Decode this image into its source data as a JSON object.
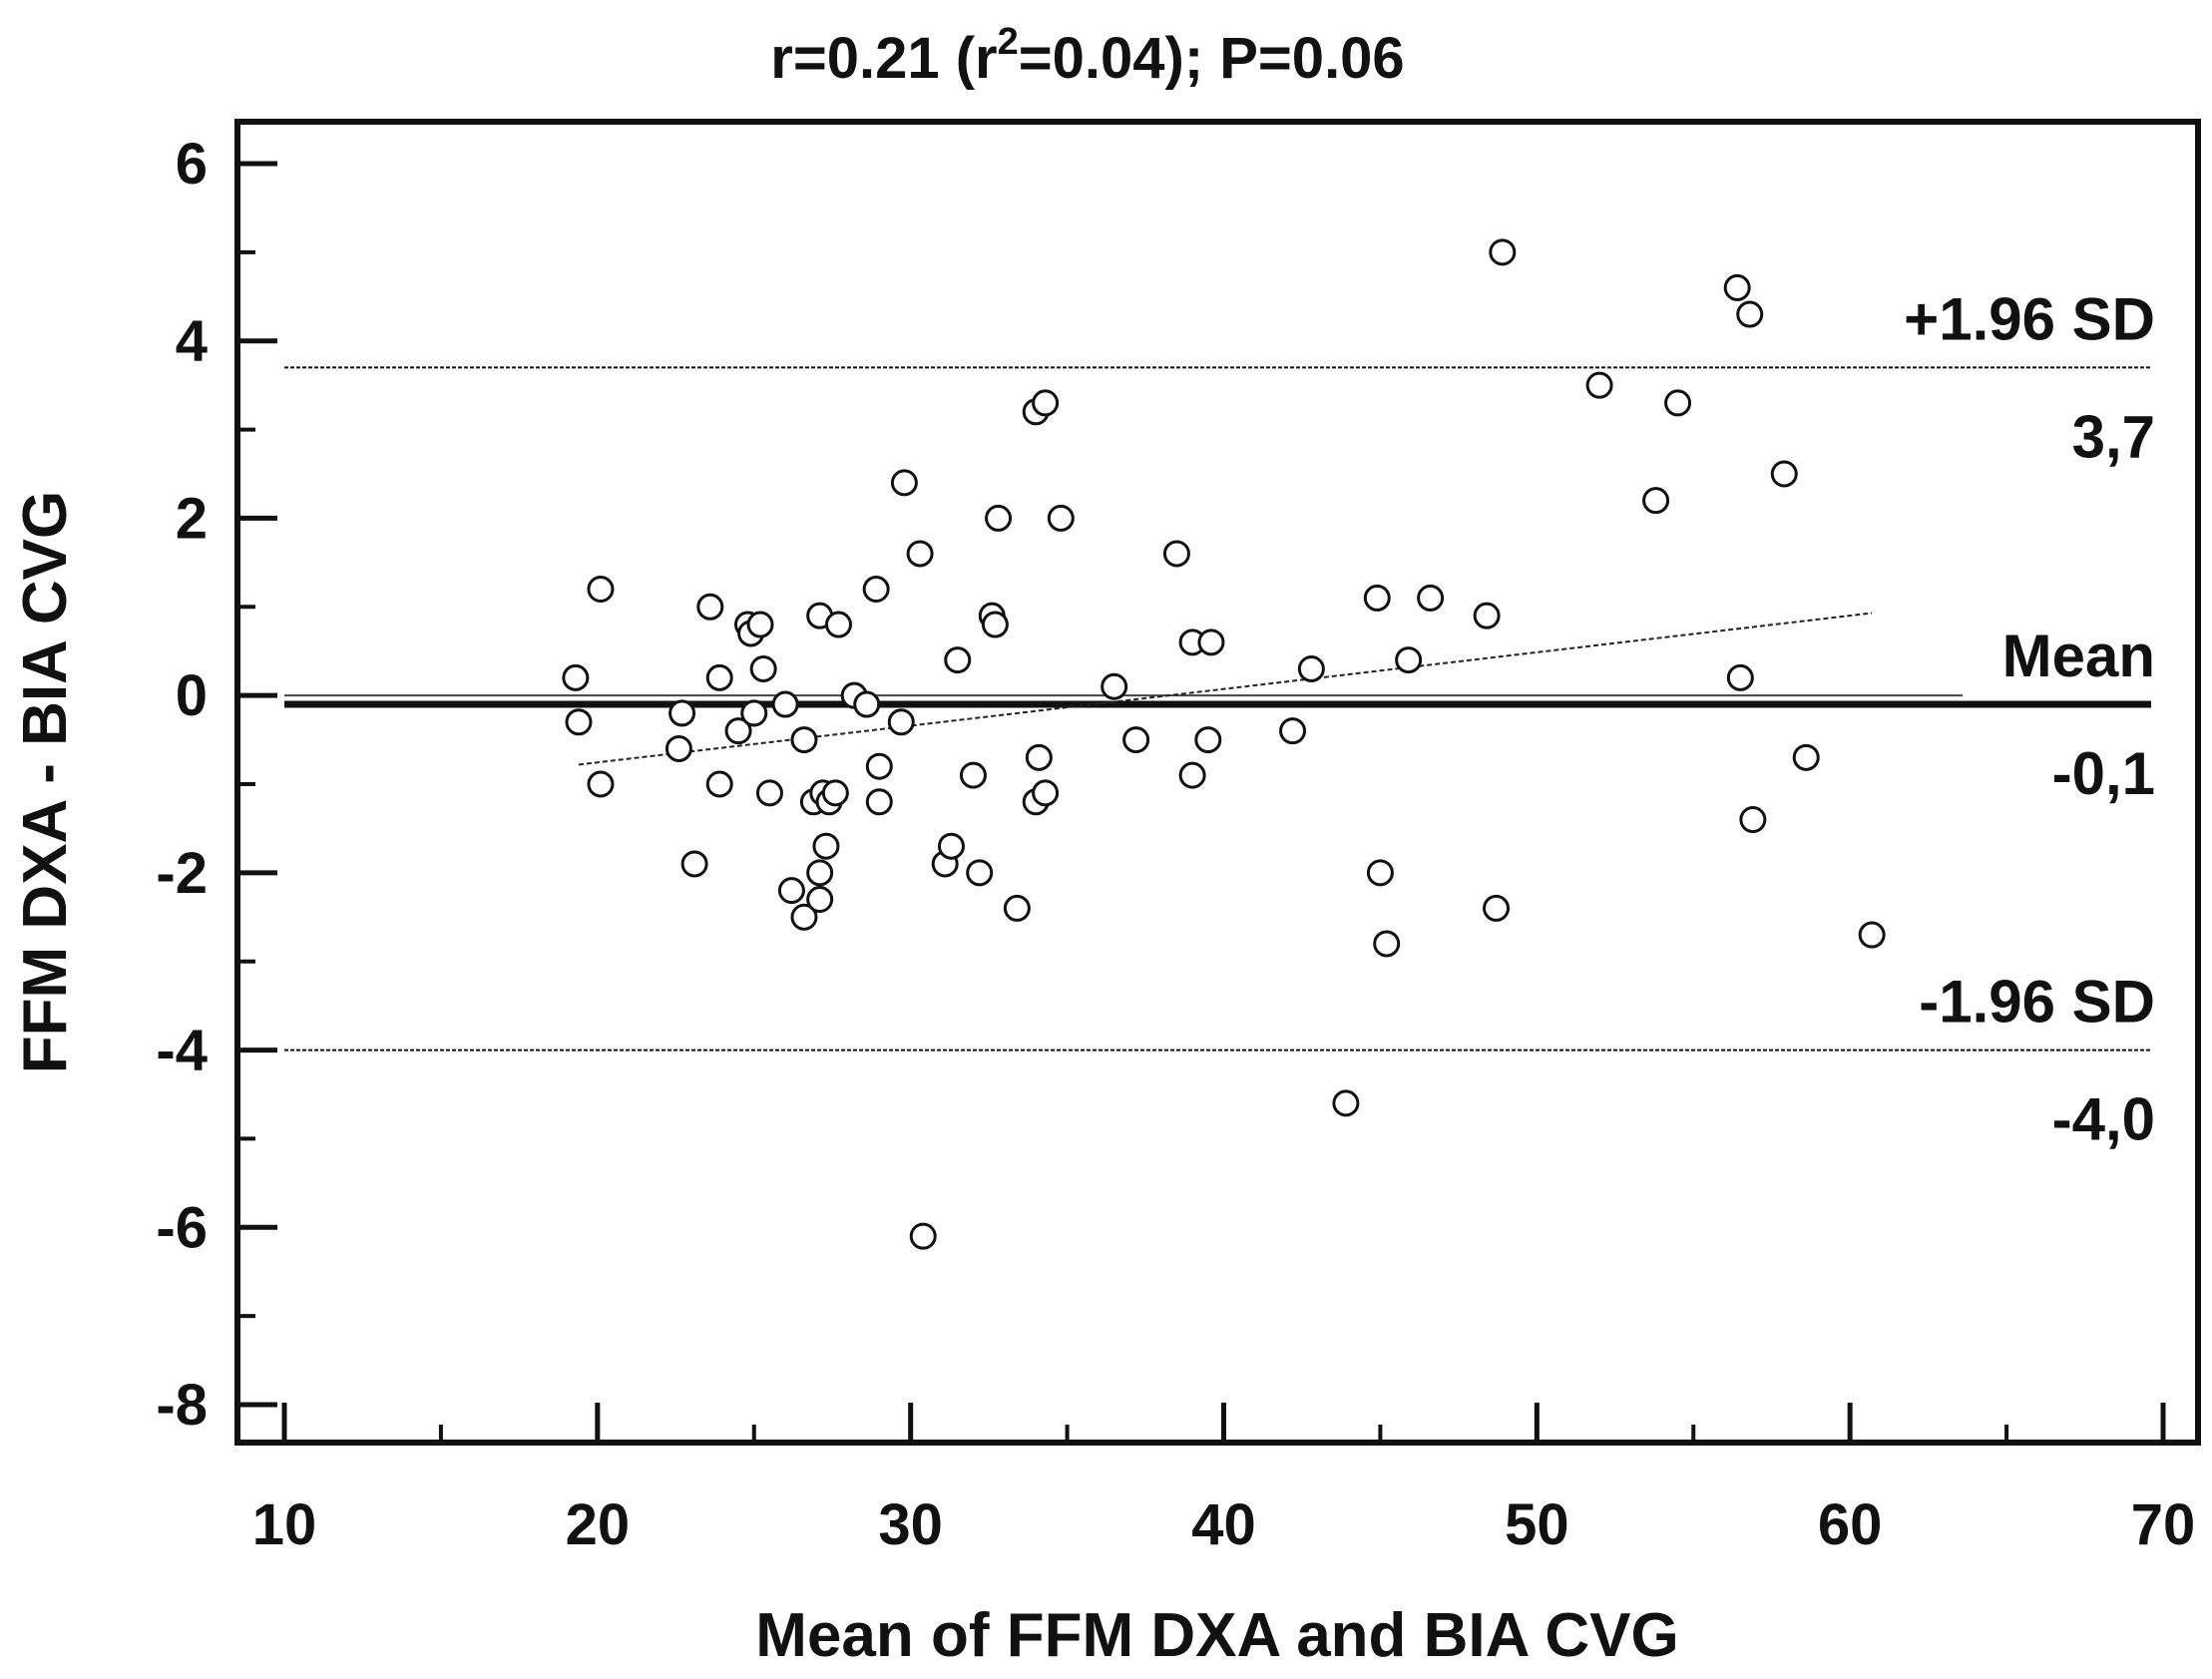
{
  "chart_data": {
    "type": "scatter",
    "title": "r=0.21 (r",
    "title_sup": "2",
    "title_rest": "=0.04); P=0.06",
    "xlabel": "Mean of FFM DXA and BIA CVG",
    "ylabel": "FFM DXA - BIA CVG",
    "xlim": [
      10,
      70
    ],
    "ylim": [
      -8,
      6
    ],
    "x_ticks": [
      "10",
      "20",
      "30",
      "40",
      "50",
      "60",
      "70"
    ],
    "y_ticks": [
      "6",
      "4",
      "2",
      "0",
      "-2",
      "-4",
      "-6",
      "-8"
    ],
    "grid": false,
    "reference_lines": [
      {
        "name": "+1.96 SD",
        "value": 3.7,
        "value_label": "3,7",
        "style": "dotted"
      },
      {
        "name": "Mean",
        "value": -0.1,
        "value_label": "-0,1",
        "style": "solid"
      },
      {
        "name": "-1.96 SD",
        "value": -4.0,
        "value_label": "-4,0",
        "style": "dotted"
      }
    ],
    "zero_line": {
      "value": 0,
      "x_range": [
        10,
        63.6
      ]
    },
    "regression_line": {
      "x": [
        19.4,
        60.7
      ],
      "y": [
        -0.78,
        0.93
      ]
    },
    "points": [
      {
        "x": 19.3,
        "y": 0.2
      },
      {
        "x": 19.4,
        "y": -0.3
      },
      {
        "x": 20.1,
        "y": 1.2
      },
      {
        "x": 20.1,
        "y": -1.0
      },
      {
        "x": 22.6,
        "y": -0.6
      },
      {
        "x": 22.7,
        "y": -0.2
      },
      {
        "x": 23.1,
        "y": -1.9
      },
      {
        "x": 23.6,
        "y": 1.0
      },
      {
        "x": 23.9,
        "y": 0.2
      },
      {
        "x": 23.9,
        "y": -1.0
      },
      {
        "x": 24.5,
        "y": -0.4
      },
      {
        "x": 24.8,
        "y": 0.8
      },
      {
        "x": 24.9,
        "y": 0.7
      },
      {
        "x": 25.0,
        "y": -0.2
      },
      {
        "x": 25.2,
        "y": 0.8
      },
      {
        "x": 25.3,
        "y": 0.3
      },
      {
        "x": 25.5,
        "y": -1.1
      },
      {
        "x": 26.0,
        "y": -0.1
      },
      {
        "x": 26.2,
        "y": -2.2
      },
      {
        "x": 26.6,
        "y": -0.5
      },
      {
        "x": 26.6,
        "y": -2.5
      },
      {
        "x": 26.9,
        "y": -1.2
      },
      {
        "x": 27.1,
        "y": 0.9
      },
      {
        "x": 27.1,
        "y": -2.0
      },
      {
        "x": 27.1,
        "y": -2.3
      },
      {
        "x": 27.2,
        "y": -1.1
      },
      {
        "x": 27.3,
        "y": -1.7
      },
      {
        "x": 27.4,
        "y": -1.2
      },
      {
        "x": 27.6,
        "y": -1.1
      },
      {
        "x": 27.7,
        "y": 0.8
      },
      {
        "x": 28.2,
        "y": 0.0
      },
      {
        "x": 28.6,
        "y": -0.1
      },
      {
        "x": 28.9,
        "y": 1.2
      },
      {
        "x": 29.0,
        "y": -0.8
      },
      {
        "x": 29.0,
        "y": -1.2
      },
      {
        "x": 29.7,
        "y": -0.3
      },
      {
        "x": 29.8,
        "y": 2.4
      },
      {
        "x": 30.3,
        "y": 1.6
      },
      {
        "x": 30.4,
        "y": -6.1
      },
      {
        "x": 31.1,
        "y": -1.9
      },
      {
        "x": 31.3,
        "y": -1.7
      },
      {
        "x": 31.5,
        "y": 0.4
      },
      {
        "x": 32.0,
        "y": -0.9
      },
      {
        "x": 32.2,
        "y": -2.0
      },
      {
        "x": 32.6,
        "y": 0.9
      },
      {
        "x": 32.7,
        "y": 0.8
      },
      {
        "x": 32.8,
        "y": 2.0
      },
      {
        "x": 33.4,
        "y": -2.4
      },
      {
        "x": 34.0,
        "y": 3.2
      },
      {
        "x": 34.0,
        "y": -1.2
      },
      {
        "x": 34.1,
        "y": -0.7
      },
      {
        "x": 34.3,
        "y": -1.1
      },
      {
        "x": 34.3,
        "y": 3.3
      },
      {
        "x": 34.8,
        "y": 2.0
      },
      {
        "x": 36.5,
        "y": 0.1
      },
      {
        "x": 37.2,
        "y": -0.5
      },
      {
        "x": 38.5,
        "y": 1.6
      },
      {
        "x": 39.0,
        "y": 0.6
      },
      {
        "x": 39.0,
        "y": -0.9
      },
      {
        "x": 39.5,
        "y": -0.5
      },
      {
        "x": 39.6,
        "y": 0.6
      },
      {
        "x": 42.2,
        "y": -0.4
      },
      {
        "x": 42.8,
        "y": 0.3
      },
      {
        "x": 43.9,
        "y": -4.6
      },
      {
        "x": 44.9,
        "y": 1.1
      },
      {
        "x": 45.0,
        "y": -2.0
      },
      {
        "x": 45.2,
        "y": -2.8
      },
      {
        "x": 45.9,
        "y": 0.4
      },
      {
        "x": 46.6,
        "y": 1.1
      },
      {
        "x": 48.4,
        "y": 0.9
      },
      {
        "x": 48.7,
        "y": -2.4
      },
      {
        "x": 48.9,
        "y": 5.0
      },
      {
        "x": 52.0,
        "y": 3.5
      },
      {
        "x": 53.8,
        "y": 2.2
      },
      {
        "x": 54.5,
        "y": 3.3
      },
      {
        "x": 56.4,
        "y": 4.6
      },
      {
        "x": 56.5,
        "y": 0.2
      },
      {
        "x": 56.8,
        "y": 4.3
      },
      {
        "x": 56.9,
        "y": -1.4
      },
      {
        "x": 57.9,
        "y": 2.5
      },
      {
        "x": 58.6,
        "y": -0.7
      },
      {
        "x": 60.7,
        "y": -2.7
      }
    ]
  }
}
